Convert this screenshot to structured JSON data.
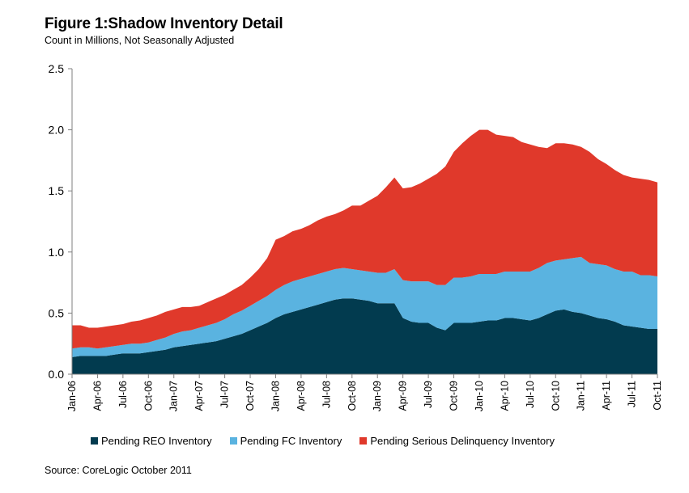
{
  "header": {
    "title": "Figure 1:Shadow Inventory Detail",
    "subtitle": "Count in Millions, Not Seasonally Adjusted"
  },
  "source": "Source: CoreLogic October 2011",
  "colors": {
    "reo": "#023b4f",
    "fc": "#5ab3e0",
    "delinquency": "#e0392b"
  },
  "chart_data": {
    "type": "area",
    "stacked": true,
    "title": "Figure 1:Shadow Inventory Detail",
    "subtitle": "Count in Millions, Not Seasonally Adjusted",
    "ylim": [
      0,
      2.5
    ],
    "yticks": [
      "0.0",
      "0.5",
      "1.0",
      "1.5",
      "2.0",
      "2.5"
    ],
    "ytick_values": [
      0,
      0.5,
      1.0,
      1.5,
      2.0,
      2.5
    ],
    "xticks": [
      "Jan-06",
      "Apr-06",
      "Jul-06",
      "Oct-06",
      "Jan-07",
      "Apr-07",
      "Jul-07",
      "Oct-07",
      "Jan-08",
      "Apr-08",
      "Jul-08",
      "Oct-08",
      "Jan-09",
      "Apr-09",
      "Jul-09",
      "Oct-09",
      "Jan-10",
      "Apr-10",
      "Jul-10",
      "Oct-10",
      "Jan-11",
      "Apr-11",
      "Jul-11",
      "Oct-11"
    ],
    "x": [
      "Jan-06",
      "Feb-06",
      "Mar-06",
      "Apr-06",
      "May-06",
      "Jun-06",
      "Jul-06",
      "Aug-06",
      "Sep-06",
      "Oct-06",
      "Nov-06",
      "Dec-06",
      "Jan-07",
      "Feb-07",
      "Mar-07",
      "Apr-07",
      "May-07",
      "Jun-07",
      "Jul-07",
      "Aug-07",
      "Sep-07",
      "Oct-07",
      "Nov-07",
      "Dec-07",
      "Jan-08",
      "Feb-08",
      "Mar-08",
      "Apr-08",
      "May-08",
      "Jun-08",
      "Jul-08",
      "Aug-08",
      "Sep-08",
      "Oct-08",
      "Nov-08",
      "Dec-08",
      "Jan-09",
      "Feb-09",
      "Mar-09",
      "Apr-09",
      "May-09",
      "Jun-09",
      "Jul-09",
      "Aug-09",
      "Sep-09",
      "Oct-09",
      "Nov-09",
      "Dec-09",
      "Jan-10",
      "Feb-10",
      "Mar-10",
      "Apr-10",
      "May-10",
      "Jun-10",
      "Jul-10",
      "Aug-10",
      "Sep-10",
      "Oct-10",
      "Nov-10",
      "Dec-10",
      "Jan-11",
      "Feb-11",
      "Mar-11",
      "Apr-11",
      "May-11",
      "Jun-11",
      "Jul-11",
      "Aug-11",
      "Sep-11",
      "Oct-11"
    ],
    "series": [
      {
        "name": "Pending REO Inventory",
        "values": [
          0.14,
          0.15,
          0.15,
          0.15,
          0.15,
          0.16,
          0.17,
          0.17,
          0.17,
          0.18,
          0.19,
          0.2,
          0.22,
          0.23,
          0.24,
          0.25,
          0.26,
          0.27,
          0.29,
          0.31,
          0.33,
          0.36,
          0.39,
          0.42,
          0.46,
          0.49,
          0.51,
          0.53,
          0.55,
          0.57,
          0.59,
          0.61,
          0.62,
          0.62,
          0.61,
          0.6,
          0.58,
          0.58,
          0.58,
          0.46,
          0.43,
          0.42,
          0.42,
          0.38,
          0.36,
          0.42,
          0.42,
          0.42,
          0.43,
          0.44,
          0.44,
          0.46,
          0.46,
          0.45,
          0.44,
          0.46,
          0.49,
          0.52,
          0.53,
          0.51,
          0.5,
          0.48,
          0.46,
          0.45,
          0.43,
          0.4,
          0.39,
          0.38,
          0.37,
          0.37
        ]
      },
      {
        "name": "Pending FC Inventory",
        "values": [
          0.07,
          0.07,
          0.07,
          0.06,
          0.07,
          0.07,
          0.07,
          0.08,
          0.08,
          0.08,
          0.09,
          0.1,
          0.11,
          0.12,
          0.12,
          0.13,
          0.14,
          0.15,
          0.16,
          0.18,
          0.19,
          0.2,
          0.21,
          0.22,
          0.23,
          0.24,
          0.25,
          0.25,
          0.25,
          0.25,
          0.25,
          0.25,
          0.25,
          0.24,
          0.24,
          0.24,
          0.25,
          0.25,
          0.28,
          0.31,
          0.33,
          0.34,
          0.34,
          0.35,
          0.37,
          0.37,
          0.37,
          0.38,
          0.39,
          0.38,
          0.38,
          0.38,
          0.38,
          0.39,
          0.4,
          0.41,
          0.42,
          0.41,
          0.41,
          0.44,
          0.46,
          0.43,
          0.44,
          0.44,
          0.43,
          0.44,
          0.45,
          0.43,
          0.44,
          0.43
        ]
      },
      {
        "name": "Pending Serious Delinquency Inventory",
        "values": [
          0.19,
          0.18,
          0.16,
          0.17,
          0.17,
          0.17,
          0.17,
          0.18,
          0.19,
          0.2,
          0.2,
          0.21,
          0.2,
          0.2,
          0.19,
          0.18,
          0.19,
          0.2,
          0.2,
          0.2,
          0.21,
          0.23,
          0.26,
          0.31,
          0.41,
          0.4,
          0.41,
          0.41,
          0.42,
          0.44,
          0.45,
          0.45,
          0.47,
          0.52,
          0.53,
          0.58,
          0.63,
          0.7,
          0.75,
          0.75,
          0.77,
          0.8,
          0.84,
          0.91,
          0.97,
          1.03,
          1.1,
          1.15,
          1.18,
          1.18,
          1.14,
          1.11,
          1.1,
          1.06,
          1.04,
          0.99,
          0.94,
          0.96,
          0.95,
          0.93,
          0.9,
          0.91,
          0.86,
          0.83,
          0.81,
          0.79,
          0.77,
          0.79,
          0.78,
          0.77
        ]
      }
    ],
    "legend": "bottom"
  }
}
